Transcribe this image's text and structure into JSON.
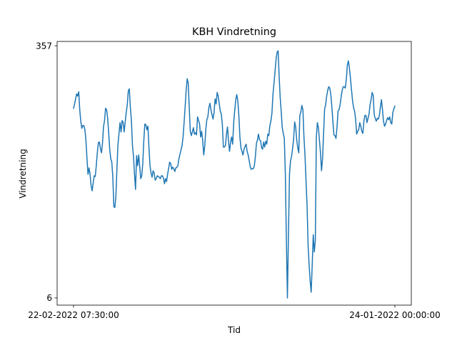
{
  "chart_data": {
    "type": "line",
    "title": "KBH Vindretning",
    "xlabel": "Tid",
    "ylabel": "Vindretning",
    "x_tick_labels": [
      "22-02-2022 07:30:00",
      "24-01-2022 00:00:00"
    ],
    "y_tick_labels": [
      "6",
      "357"
    ],
    "ylim": [
      -4,
      363
    ],
    "grid": false,
    "legend": "none",
    "line_color": "#1f77b4",
    "series": [
      {
        "values": [
          270,
          276,
          283,
          290,
          287,
          293,
          268,
          252,
          242,
          246,
          246,
          240,
          225,
          200,
          178,
          187,
          178,
          162,
          155,
          166,
          176,
          175,
          190,
          208,
          222,
          223,
          214,
          208,
          221,
          244,
          253,
          270,
          268,
          256,
          236,
          213,
          200,
          195,
          175,
          133,
          132,
          148,
          186,
          220,
          235,
          250,
          237,
          253,
          250,
          237,
          251,
          264,
          275,
          294,
          297,
          271,
          253,
          219,
          203,
          178,
          157,
          204,
          190,
          205,
          190,
          172,
          176,
          193,
          225,
          248,
          247,
          240,
          245,
          215,
          190,
          180,
          174,
          183,
          180,
          170,
          172,
          176,
          175,
          174,
          172,
          176,
          176,
          173,
          165,
          172,
          168,
          178,
          186,
          195,
          193,
          185,
          188,
          186,
          182,
          187,
          188,
          190,
          200,
          206,
          212,
          218,
          230,
          250,
          272,
          295,
          311,
          305,
          270,
          238,
          232,
          237,
          243,
          234,
          236,
          233,
          258,
          253,
          248,
          230,
          238,
          225,
          205,
          218,
          240,
          254,
          258,
          271,
          277,
          268,
          261,
          255,
          264,
          283,
          276,
          292,
          287,
          276,
          266,
          262,
          248,
          216,
          216,
          218,
          234,
          244,
          224,
          210,
          223,
          230,
          220,
          250,
          267,
          282,
          289,
          280,
          260,
          230,
          215,
          210,
          205,
          213,
          217,
          220,
          210,
          205,
          197,
          189,
          185,
          186,
          186,
          190,
          203,
          221,
          226,
          234,
          226,
          225,
          215,
          213,
          223,
          216,
          224,
          220,
          234,
          232,
          246,
          252,
          263,
          289,
          305,
          321,
          338,
          348,
          350,
          314,
          285,
          265,
          243,
          235,
          228,
          178,
          86,
          6,
          94,
          178,
          197,
          203,
          214,
          227,
          251,
          244,
          226,
          215,
          208,
          260,
          265,
          274,
          268,
          230,
          204,
          170,
          135,
          80,
          52,
          30,
          14,
          52,
          94,
          70,
          86,
          230,
          250,
          243,
          225,
          208,
          183,
          200,
          235,
          269,
          275,
          287,
          295,
          300,
          298,
          289,
          272,
          252,
          233,
          232,
          228,
          244,
          266,
          268,
          275,
          286,
          295,
          300,
          300,
          298,
          310,
          330,
          336,
          326,
          312,
          296,
          281,
          271,
          266,
          255,
          234,
          238,
          240,
          250,
          245,
          238,
          235,
          252,
          260,
          260,
          250,
          256,
          262,
          275,
          282,
          292,
          288,
          261,
          256,
          252,
          256,
          255,
          260,
          272,
          282,
          268,
          252,
          245,
          248,
          253,
          257,
          254,
          258,
          250,
          248,
          264,
          269,
          273
        ]
      }
    ]
  }
}
